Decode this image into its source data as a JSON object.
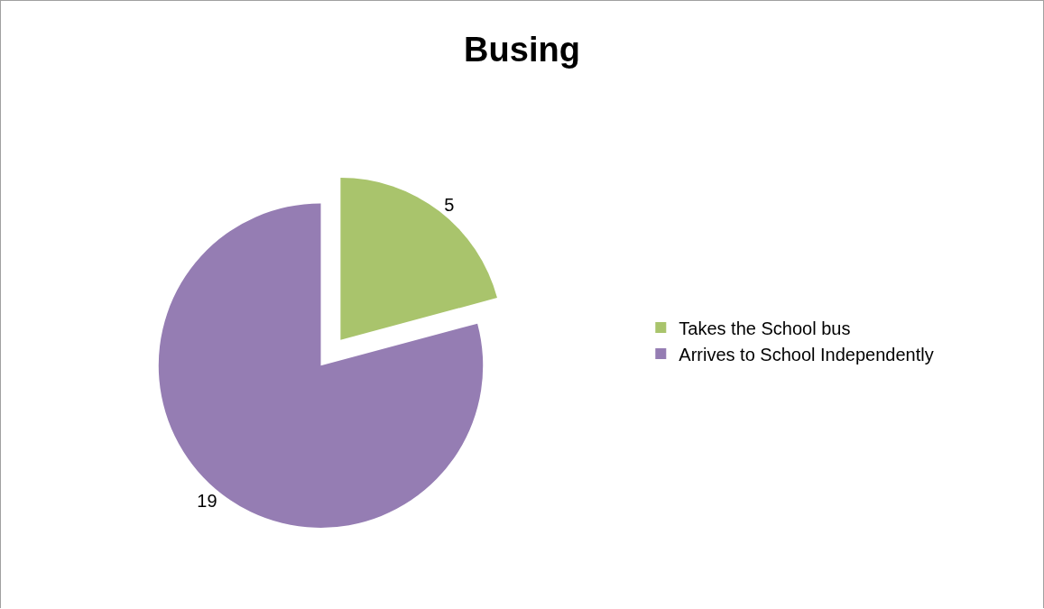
{
  "chart_data": {
    "type": "pie",
    "title": "Busing",
    "categories": [
      "Takes the School bus",
      "Arrives to School Independently"
    ],
    "values": [
      5,
      19
    ],
    "colors": [
      "#a9c46c",
      "#957db3"
    ],
    "data_labels": true,
    "legend": "right"
  }
}
